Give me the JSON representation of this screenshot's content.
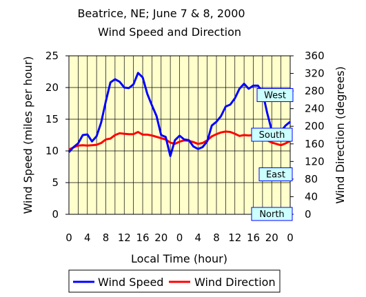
{
  "chart_data": {
    "type": "line",
    "title": "Beatrice, NE; June 7 & 8, 2000",
    "subtitle": "Wind Speed and Direction",
    "xlabel": "Local Time (hour)",
    "ylabel_left": "Wind Speed (miles per hour)",
    "ylabel_right": "Wind Direction (degrees)",
    "x_tick_labels": [
      "0",
      "4",
      "8",
      "12",
      "16",
      "20",
      "0",
      "4",
      "8",
      "12",
      "16",
      "20",
      "0"
    ],
    "ylim_left": [
      0,
      25
    ],
    "y_left_ticks": [
      "0",
      "5",
      "10",
      "15",
      "20",
      "25"
    ],
    "ylim_right": [
      0,
      360
    ],
    "y_right_ticks": [
      "0",
      "40",
      "80",
      "120",
      "160",
      "200",
      "240",
      "280",
      "320",
      "360"
    ],
    "xlim": [
      0,
      48
    ],
    "grid": "vertical and horizontal",
    "plot_background": "#ffffcc",
    "legend_position": "bottom",
    "direction_labels": [
      {
        "label": "North",
        "value": 0
      },
      {
        "label": "East",
        "value": 90
      },
      {
        "label": "South",
        "value": 180
      },
      {
        "label": "West",
        "value": 270
      }
    ],
    "series": [
      {
        "name": "Wind Speed",
        "axis": "left",
        "color": "#0000ff",
        "x": [
          0,
          1,
          2,
          3,
          4,
          5,
          6,
          7,
          8,
          9,
          10,
          11,
          12,
          13,
          14,
          15,
          16,
          17,
          18,
          19,
          20,
          21,
          22,
          23,
          24,
          25,
          26,
          27,
          28,
          29,
          30,
          31,
          32,
          33,
          34,
          35,
          36,
          37,
          38,
          39,
          40,
          41,
          42,
          43,
          44,
          45,
          46,
          47,
          48
        ],
        "values": [
          9.8,
          10.6,
          11.2,
          12.5,
          12.6,
          11.5,
          12.3,
          14.5,
          17.8,
          20.8,
          21.3,
          20.9,
          20.0,
          19.9,
          20.5,
          22.3,
          21.6,
          19.0,
          17.2,
          15.5,
          12.5,
          12.2,
          9.2,
          11.7,
          12.4,
          11.8,
          11.7,
          10.7,
          10.3,
          10.6,
          11.5,
          14.0,
          14.6,
          15.5,
          17.0,
          17.3,
          18.3,
          19.8,
          20.6,
          19.8,
          20.3,
          20.3,
          19.3,
          16.0,
          13.2,
          12.7,
          13.1,
          14.0,
          14.6
        ]
      },
      {
        "name": "Wind Direction",
        "axis": "right",
        "color": "#ff0000",
        "x": [
          0,
          1,
          2,
          3,
          4,
          5,
          6,
          7,
          8,
          9,
          10,
          11,
          12,
          13,
          14,
          15,
          16,
          17,
          18,
          19,
          20,
          21,
          22,
          23,
          24,
          25,
          26,
          27,
          28,
          29,
          30,
          31,
          32,
          33,
          34,
          35,
          36,
          37,
          38,
          39,
          40,
          41,
          42,
          43,
          44,
          45,
          46,
          47,
          48
        ],
        "values": [
          147,
          152,
          156,
          157,
          156,
          157,
          158,
          162,
          170,
          172,
          180,
          184,
          183,
          182,
          182,
          187,
          181,
          181,
          179,
          176,
          173,
          170,
          163,
          160,
          165,
          168,
          167,
          164,
          160,
          162,
          168,
          177,
          182,
          186,
          188,
          187,
          183,
          178,
          180,
          179,
          180,
          176,
          172,
          168,
          163,
          160,
          157,
          161,
          167
        ]
      }
    ]
  }
}
